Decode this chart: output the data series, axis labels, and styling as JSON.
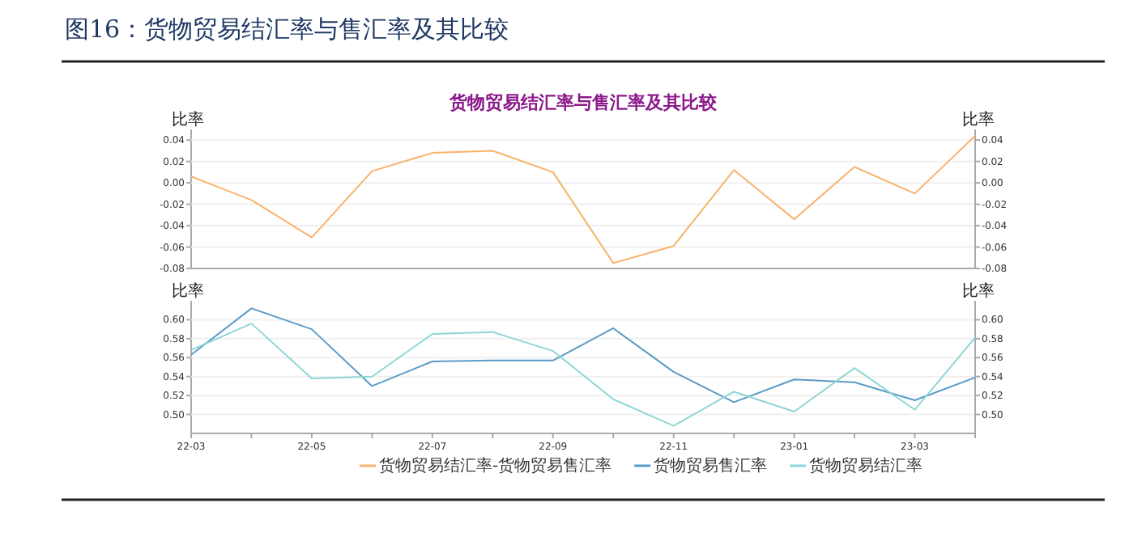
{
  "chart_data": [
    {
      "type": "line",
      "title": "图16：货物贸易结汇率与售汇率及其比较",
      "subtitle": "货物贸易结汇率与售汇率及其比较",
      "categories": [
        null,
        null,
        null,
        null,
        null,
        null,
        null,
        null,
        null,
        null,
        null,
        null,
        null,
        null
      ],
      "series": [
        {
          "name": "货物贸易结汇率-货物贸易售汇率",
          "color": "#f9b26b",
          "values": [
            0.006,
            -0.016,
            -0.051,
            0.011,
            0.028,
            0.03,
            0.01,
            -0.075,
            -0.059,
            0.012,
            -0.034,
            0.015,
            -0.01,
            0.044
          ]
        }
      ],
      "ylabel": "比率",
      "y2label": "比率",
      "ylim": [
        -0.08,
        0.05
      ],
      "yticks": [
        {
          "value": -0.08,
          "label": "-0.08"
        },
        -0.06,
        -0.04,
        -0.02,
        {
          "value": 0,
          "label": "0.00"
        },
        0.02,
        0.04
      ],
      "y2lim": [
        -0.08,
        0.05
      ],
      "y2ticks": [
        {
          "value": -0.08,
          "label": "-0.08"
        },
        -0.06,
        -0.04,
        -0.02,
        {
          "value": 0,
          "label": "0.00"
        },
        0.02,
        0.04
      ],
      "grid": "y",
      "legend": "bottom",
      "tick_labels": "y"
    },
    {
      "type": "line",
      "categories": [
        "22-03",
        null,
        "22-05",
        null,
        "22-07",
        null,
        "22-09",
        null,
        "22-11",
        null,
        "23-01",
        null,
        "23-03",
        null
      ],
      "series": [
        {
          "name": "货物贸易售汇率",
          "color": "#5b9bc7",
          "values": [
            0.563,
            0.612,
            0.59,
            0.53,
            0.556,
            0.557,
            0.557,
            0.591,
            0.545,
            0.513,
            0.537,
            0.534,
            0.515,
            0.539
          ]
        },
        {
          "name": "货物贸易结汇率",
          "color": "#8fd6d6",
          "values": [
            0.568,
            0.596,
            0.538,
            0.54,
            0.585,
            0.587,
            0.567,
            0.516,
            0.488,
            0.524,
            0.503,
            0.549,
            0.505,
            0.581
          ]
        }
      ],
      "ylabel": "比率",
      "y2label": "比率",
      "ylim": [
        0.48,
        0.62
      ],
      "yticks": [
        {
          "value": 0.5,
          "label": "0.50"
        },
        0.52,
        0.54,
        0.56,
        0.58,
        {
          "value": 0.6,
          "label": "0.60"
        }
      ],
      "y2lim": [
        0.48,
        0.62
      ],
      "y2ticks": [
        {
          "value": 0.5,
          "label": "0.50"
        },
        0.52,
        0.54,
        0.56,
        0.58,
        {
          "value": 0.6,
          "label": "0.60"
        }
      ],
      "grid": "y",
      "legend": "bottom"
    }
  ]
}
